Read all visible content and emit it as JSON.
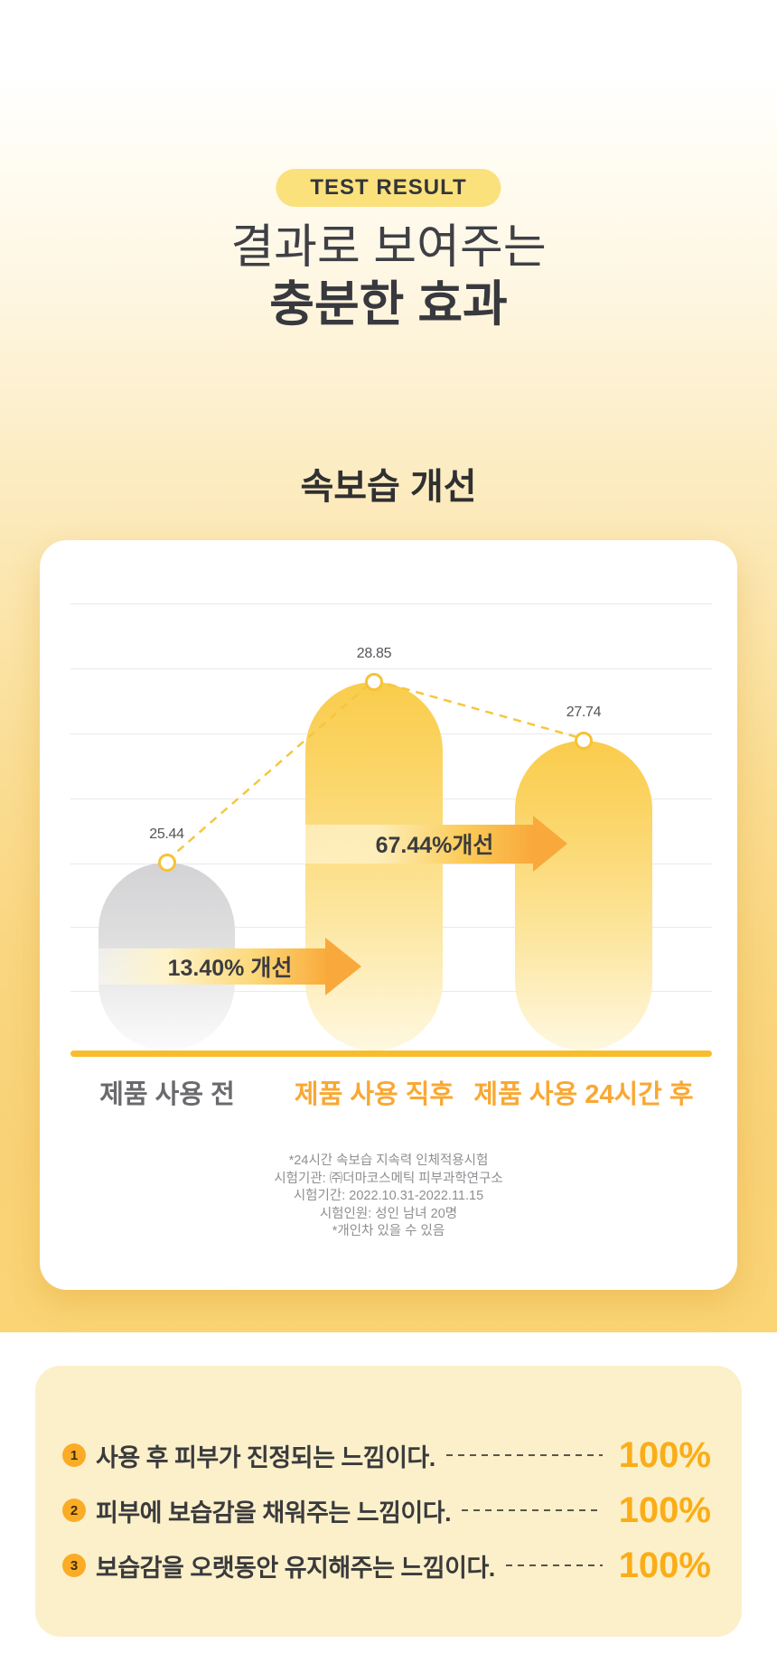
{
  "page": {
    "badge": "TEST RESULT",
    "title_line1": "결과로 보여주는",
    "title_line2": "충분한 효과"
  },
  "chart": {
    "footnotes": [
      "*24시간 속보습 지속력 인체적용시험",
      "시험기관: ㈜더마코스메틱 피부과학연구소",
      "시험기간: 2022.10.31-2022.11.15",
      "시험인원: 성인 남녀 20명",
      "*개인차 있을 수 있음"
    ]
  },
  "chart_data": {
    "type": "bar",
    "title": "속보습 개선",
    "categories": [
      "제품 사용 전",
      "제품 사용 직후",
      "제품 사용 24시간 후"
    ],
    "values": [
      25.44,
      28.85,
      27.74
    ],
    "value_labels": [
      "25.44",
      "28.85",
      "27.74"
    ],
    "improvement_annotations": [
      {
        "label": "13.40% 개선",
        "from": "제품 사용 전",
        "to": "제품 사용 직후"
      },
      {
        "label": "67.44%개선",
        "from": "제품 사용 직후",
        "to": "제품 사용 24시간 후"
      }
    ],
    "ylim": [
      21.89,
      30.5
    ],
    "grid": true,
    "legend": "none",
    "bar_styles": {
      "before": "gray-gradient",
      "after": "yellow-gradient",
      "after_24h": "yellow-gradient"
    }
  },
  "survey": {
    "items": [
      {
        "num": "1",
        "text": "사용 후 피부가 진정되는 느낌이다.",
        "value": "100%"
      },
      {
        "num": "2",
        "text": "피부에 보습감을 채워주는 느낌이다.",
        "value": "100%"
      },
      {
        "num": "3",
        "text": "보습감을 오랫동안 유지해주는 느낌이다.",
        "value": "100%"
      }
    ]
  },
  "colors": {
    "accent_yellow": "#f9bd2b",
    "accent_orange": "#f9a93b",
    "bar_yellow": "#facc4b",
    "bar_gray": "#d3d3d5",
    "badge_bg": "#fae17c",
    "survey_card_bg": "#fbf0c9",
    "percent_text": "#fbad17",
    "category_highlight": "#f9a832"
  }
}
